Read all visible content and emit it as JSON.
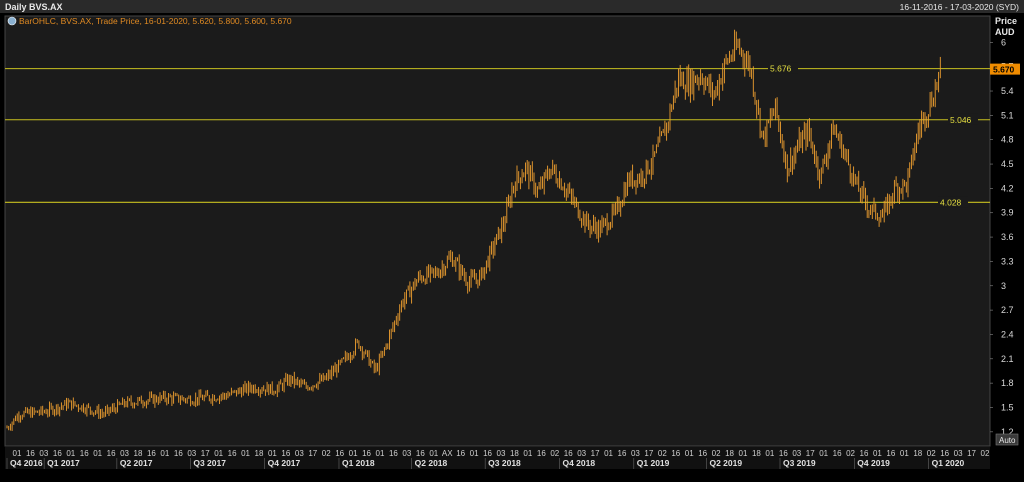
{
  "header": {
    "title": "Daily BVS.AX",
    "date_range": "16-11-2016 - 17-03-2020 (SYD)"
  },
  "legend": {
    "text": "BarOHLC, BVS.AX, Trade Price, 16-01-2020, 5.620, 5.800, 5.600, 5.670"
  },
  "axis": {
    "price_label": "Price",
    "currency_label": "AUD",
    "auto_button": "Auto",
    "last_price_tag": "5.670"
  },
  "colors": {
    "background": "#000000",
    "plot_background": "#1b1b1b",
    "grid": "#3a3a3a",
    "bars": "#f0a030",
    "level_lines": "#c8c020",
    "last_price_tag": "#f08c00"
  },
  "chart_data": {
    "type": "line",
    "style": "ohlc-bars",
    "title": "Daily BVS.AX",
    "xlabel": "",
    "ylabel": "Price AUD",
    "ylim": [
      1.05,
      6.3
    ],
    "yticks": [
      "6",
      "5.7",
      "5.4",
      "5.1",
      "4.8",
      "4.5",
      "4.2",
      "3.9",
      "3.6",
      "3.3",
      "3",
      "2.7",
      "2.4",
      "2.1",
      "1.8",
      "1.5",
      "1.2"
    ],
    "x_tick_labels": [
      "01",
      "16",
      "03",
      "16",
      "01",
      "16",
      "01",
      "16",
      "03",
      "18",
      "16",
      "01",
      "16",
      "03",
      "17",
      "01",
      "16",
      "01",
      "18",
      "01",
      "16",
      "03",
      "17",
      "02",
      "16",
      "01",
      "16",
      "01",
      "16",
      "03",
      "16",
      "01",
      "AX",
      "16",
      "01",
      "16",
      "03",
      "18",
      "01",
      "16",
      "02",
      "16",
      "03",
      "17",
      "01",
      "16",
      "03",
      "17",
      "02",
      "16",
      "01",
      "16",
      "02",
      "18",
      "01",
      "18",
      "01",
      "16",
      "03",
      "17",
      "01",
      "16",
      "02",
      "16",
      "01",
      "16",
      "01",
      "18",
      "02",
      "16",
      "03",
      "17",
      "02"
    ],
    "quarter_labels": [
      "Q4 2016",
      "Q1 2017",
      "Q2 2017",
      "Q3 2017",
      "Q4 2017",
      "Q1 2018",
      "Q2 2018",
      "Q3 2018",
      "Q4 2018",
      "Q1 2019",
      "Q2 2019",
      "Q3 2019",
      "Q4 2019",
      "Q1 2020"
    ],
    "date_range": [
      "2016-11-16",
      "2020-03-17"
    ],
    "horizontal_levels": [
      {
        "value": 5.676,
        "label": "5.676"
      },
      {
        "value": 5.046,
        "label": "5.046"
      },
      {
        "value": 4.028,
        "label": "4.028"
      }
    ],
    "last_value": 5.67,
    "grid": false,
    "series": [
      {
        "name": "BVS.AX",
        "x": [
          "2016-11-16",
          "2016-12-01",
          "2017-01-02",
          "2017-02-01",
          "2017-02-20",
          "2017-03-15",
          "2017-04-10",
          "2017-05-15",
          "2017-06-01",
          "2017-07-01",
          "2017-08-15",
          "2017-09-15",
          "2017-10-15",
          "2017-11-01",
          "2017-11-20",
          "2017-12-15",
          "2018-01-05",
          "2018-01-25",
          "2018-02-15",
          "2018-02-28",
          "2018-03-20",
          "2018-04-10",
          "2018-05-01",
          "2018-05-20",
          "2018-06-10",
          "2018-06-25",
          "2018-07-10",
          "2018-07-25",
          "2018-08-05",
          "2018-08-20",
          "2018-09-05",
          "2018-09-20",
          "2018-10-05",
          "2018-10-20",
          "2018-11-05",
          "2018-11-20",
          "2018-12-10",
          "2018-12-25",
          "2019-01-10",
          "2019-01-25",
          "2019-02-10",
          "2019-02-25",
          "2019-03-10",
          "2019-03-25",
          "2019-04-10",
          "2019-04-25",
          "2019-05-10",
          "2019-05-25",
          "2019-06-10",
          "2019-06-25",
          "2019-07-10",
          "2019-07-25",
          "2019-08-05",
          "2019-08-20",
          "2019-09-05",
          "2019-09-20",
          "2019-10-05",
          "2019-10-20",
          "2019-11-05",
          "2019-11-20",
          "2019-12-05",
          "2019-12-20",
          "2020-01-05",
          "2020-01-16"
        ],
        "values": [
          1.25,
          1.42,
          1.45,
          1.55,
          1.5,
          1.42,
          1.55,
          1.6,
          1.62,
          1.6,
          1.65,
          1.75,
          1.72,
          1.85,
          1.75,
          1.85,
          2.05,
          2.3,
          1.95,
          2.25,
          2.8,
          3.1,
          3.15,
          3.35,
          3.05,
          3.1,
          3.45,
          3.8,
          4.25,
          4.45,
          4.15,
          4.45,
          4.25,
          4.0,
          3.75,
          3.7,
          3.9,
          4.3,
          4.35,
          4.55,
          4.95,
          5.55,
          5.5,
          5.6,
          5.35,
          5.75,
          5.95,
          5.7,
          4.8,
          5.2,
          4.45,
          4.75,
          4.9,
          4.35,
          4.95,
          4.6,
          4.2,
          3.95,
          3.85,
          4.2,
          4.25,
          4.95,
          5.3,
          5.67
        ]
      }
    ]
  }
}
